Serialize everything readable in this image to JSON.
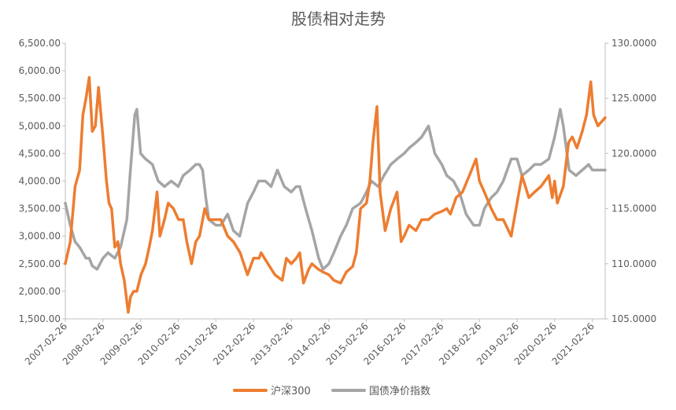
{
  "chart_data": {
    "type": "line",
    "title": "股债相对走势",
    "x_ticks": [
      "2007-02-26",
      "2008-02-26",
      "2009-02-26",
      "2010-02-26",
      "2011-02-26",
      "2012-02-26",
      "2013-02-26",
      "2014-02-26",
      "2015-02-26",
      "2016-02-26",
      "2017-02-26",
      "2018-02-26",
      "2019-02-26",
      "2020-02-26",
      "2021-02-26"
    ],
    "x_range": [
      "2007-02-26",
      "2021-06-30"
    ],
    "y_left": {
      "range": [
        1500,
        6500
      ],
      "ticks": [
        "1,500.00",
        "2,000.00",
        "2,500.00",
        "3,000.00",
        "3,500.00",
        "4,000.00",
        "4,500.00",
        "5,000.00",
        "5,500.00",
        "6,000.00",
        "6,500.00"
      ]
    },
    "y_right": {
      "range": [
        105,
        130
      ],
      "ticks": [
        "105.0000",
        "110.0000",
        "115.0000",
        "120.0000",
        "125.0000",
        "130.0000"
      ]
    },
    "grid": false,
    "legend_position": "bottom",
    "series": [
      {
        "name": "沪深300",
        "axis": "left",
        "color": "#ED7D31",
        "points": [
          [
            "2007-02-26",
            2500
          ],
          [
            "2007-04-15",
            2900
          ],
          [
            "2007-06-01",
            3900
          ],
          [
            "2007-07-15",
            4200
          ],
          [
            "2007-08-15",
            5200
          ],
          [
            "2007-09-15",
            5500
          ],
          [
            "2007-10-16",
            5880
          ],
          [
            "2007-11-15",
            4900
          ],
          [
            "2007-12-15",
            5000
          ],
          [
            "2008-01-14",
            5700
          ],
          [
            "2008-02-26",
            4800
          ],
          [
            "2008-03-31",
            4000
          ],
          [
            "2008-04-25",
            3600
          ],
          [
            "2008-05-20",
            3500
          ],
          [
            "2008-06-20",
            2800
          ],
          [
            "2008-07-20",
            2900
          ],
          [
            "2008-08-15",
            2500
          ],
          [
            "2008-09-20",
            2200
          ],
          [
            "2008-10-28",
            1620
          ],
          [
            "2008-11-20",
            1900
          ],
          [
            "2008-12-20",
            2000
          ],
          [
            "2009-01-20",
            2000
          ],
          [
            "2009-03-01",
            2300
          ],
          [
            "2009-04-15",
            2500
          ],
          [
            "2009-05-20",
            2800
          ],
          [
            "2009-06-20",
            3100
          ],
          [
            "2009-08-04",
            3800
          ],
          [
            "2009-09-01",
            3000
          ],
          [
            "2009-10-15",
            3300
          ],
          [
            "2009-11-20",
            3600
          ],
          [
            "2010-01-10",
            3500
          ],
          [
            "2010-03-01",
            3300
          ],
          [
            "2010-04-15",
            3300
          ],
          [
            "2010-05-20",
            2900
          ],
          [
            "2010-07-05",
            2500
          ],
          [
            "2010-08-15",
            2900
          ],
          [
            "2010-09-20",
            3000
          ],
          [
            "2010-11-10",
            3500
          ],
          [
            "2010-12-20",
            3300
          ],
          [
            "2011-02-26",
            3300
          ],
          [
            "2011-04-15",
            3300
          ],
          [
            "2011-06-20",
            3000
          ],
          [
            "2011-08-15",
            2900
          ],
          [
            "2011-10-20",
            2700
          ],
          [
            "2011-12-30",
            2300
          ],
          [
            "2012-02-26",
            2600
          ],
          [
            "2012-04-20",
            2600
          ],
          [
            "2012-05-10",
            2700
          ],
          [
            "2012-07-15",
            2500
          ],
          [
            "2012-09-20",
            2300
          ],
          [
            "2012-11-30",
            2200
          ],
          [
            "2013-01-10",
            2600
          ],
          [
            "2013-02-26",
            2500
          ],
          [
            "2013-04-15",
            2600
          ],
          [
            "2013-05-20",
            2700
          ],
          [
            "2013-06-25",
            2150
          ],
          [
            "2013-08-15",
            2400
          ],
          [
            "2013-09-15",
            2500
          ],
          [
            "2013-11-15",
            2400
          ],
          [
            "2013-12-30",
            2350
          ],
          [
            "2014-02-26",
            2300
          ],
          [
            "2014-04-15",
            2200
          ],
          [
            "2014-06-20",
            2150
          ],
          [
            "2014-08-15",
            2350
          ],
          [
            "2014-10-15",
            2450
          ],
          [
            "2014-11-20",
            2700
          ],
          [
            "2014-12-31",
            3500
          ],
          [
            "2015-02-26",
            3600
          ],
          [
            "2015-03-31",
            4000
          ],
          [
            "2015-04-30",
            4700
          ],
          [
            "2015-06-08",
            5350
          ],
          [
            "2015-07-08",
            3800
          ],
          [
            "2015-08-26",
            3100
          ],
          [
            "2015-10-20",
            3500
          ],
          [
            "2015-12-20",
            3800
          ],
          [
            "2016-01-28",
            2900
          ],
          [
            "2016-02-26",
            3000
          ],
          [
            "2016-04-15",
            3200
          ],
          [
            "2016-06-20",
            3100
          ],
          [
            "2016-08-15",
            3300
          ],
          [
            "2016-10-20",
            3300
          ],
          [
            "2016-12-20",
            3400
          ],
          [
            "2017-02-26",
            3450
          ],
          [
            "2017-04-15",
            3500
          ],
          [
            "2017-05-20",
            3400
          ],
          [
            "2017-07-15",
            3700
          ],
          [
            "2017-09-15",
            3800
          ],
          [
            "2017-11-20",
            4100
          ],
          [
            "2018-01-24",
            4400
          ],
          [
            "2018-02-26",
            4000
          ],
          [
            "2018-04-15",
            3800
          ],
          [
            "2018-06-20",
            3500
          ],
          [
            "2018-08-15",
            3300
          ],
          [
            "2018-10-15",
            3300
          ],
          [
            "2018-12-31",
            3000
          ],
          [
            "2019-02-26",
            3600
          ],
          [
            "2019-04-15",
            4100
          ],
          [
            "2019-06-20",
            3700
          ],
          [
            "2019-08-15",
            3800
          ],
          [
            "2019-10-15",
            3900
          ],
          [
            "2019-12-31",
            4100
          ],
          [
            "2020-02-03",
            3700
          ],
          [
            "2020-02-26",
            4000
          ],
          [
            "2020-03-23",
            3600
          ],
          [
            "2020-05-20",
            3900
          ],
          [
            "2020-07-10",
            4700
          ],
          [
            "2020-08-15",
            4800
          ],
          [
            "2020-09-30",
            4600
          ],
          [
            "2020-11-20",
            4900
          ],
          [
            "2020-12-31",
            5200
          ],
          [
            "2021-02-10",
            5800
          ],
          [
            "2021-03-10",
            5200
          ],
          [
            "2021-04-20",
            5000
          ],
          [
            "2021-06-30",
            5150
          ]
        ]
      },
      {
        "name": "国债净价指数",
        "axis": "right",
        "color": "#A5A5A5",
        "points": [
          [
            "2007-02-26",
            115.5
          ],
          [
            "2007-04-15",
            113.5
          ],
          [
            "2007-06-01",
            112.0
          ],
          [
            "2007-07-15",
            111.5
          ],
          [
            "2007-09-15",
            110.5
          ],
          [
            "2007-10-16",
            110.5
          ],
          [
            "2007-11-15",
            109.8
          ],
          [
            "2007-12-31",
            109.5
          ],
          [
            "2008-02-26",
            110.5
          ],
          [
            "2008-04-15",
            111.0
          ],
          [
            "2008-06-20",
            110.5
          ],
          [
            "2008-08-15",
            111.5
          ],
          [
            "2008-10-15",
            114.0
          ],
          [
            "2008-11-15",
            118.0
          ],
          [
            "2008-12-31",
            123.5
          ],
          [
            "2009-01-20",
            124.0
          ],
          [
            "2009-02-26",
            120.0
          ],
          [
            "2009-04-15",
            119.5
          ],
          [
            "2009-06-20",
            119.0
          ],
          [
            "2009-08-15",
            117.5
          ],
          [
            "2009-10-15",
            117.0
          ],
          [
            "2009-12-20",
            117.5
          ],
          [
            "2010-02-26",
            117.0
          ],
          [
            "2010-04-15",
            118.0
          ],
          [
            "2010-06-20",
            118.5
          ],
          [
            "2010-08-15",
            119.0
          ],
          [
            "2010-09-20",
            119.0
          ],
          [
            "2010-10-20",
            118.5
          ],
          [
            "2010-11-20",
            116.0
          ],
          [
            "2010-12-20",
            114.0
          ],
          [
            "2011-02-26",
            113.5
          ],
          [
            "2011-04-15",
            113.5
          ],
          [
            "2011-06-20",
            114.5
          ],
          [
            "2011-08-15",
            113.0
          ],
          [
            "2011-10-15",
            112.5
          ],
          [
            "2011-12-31",
            115.5
          ],
          [
            "2012-02-26",
            116.5
          ],
          [
            "2012-04-15",
            117.5
          ],
          [
            "2012-06-20",
            117.5
          ],
          [
            "2012-08-15",
            117.0
          ],
          [
            "2012-10-15",
            118.5
          ],
          [
            "2012-12-20",
            117.0
          ],
          [
            "2013-02-26",
            116.5
          ],
          [
            "2013-04-15",
            117.0
          ],
          [
            "2013-05-20",
            117.0
          ],
          [
            "2013-07-15",
            115.0
          ],
          [
            "2013-09-15",
            113.0
          ],
          [
            "2013-11-20",
            110.5
          ],
          [
            "2013-12-31",
            109.5
          ],
          [
            "2014-02-26",
            110.0
          ],
          [
            "2014-04-15",
            111.0
          ],
          [
            "2014-06-20",
            112.5
          ],
          [
            "2014-08-15",
            113.5
          ],
          [
            "2014-10-15",
            115.0
          ],
          [
            "2014-12-31",
            115.5
          ],
          [
            "2015-02-26",
            116.5
          ],
          [
            "2015-04-15",
            117.5
          ],
          [
            "2015-06-20",
            117.0
          ],
          [
            "2015-08-15",
            118.0
          ],
          [
            "2015-10-20",
            119.0
          ],
          [
            "2015-12-20",
            119.5
          ],
          [
            "2016-02-26",
            120.0
          ],
          [
            "2016-04-15",
            120.5
          ],
          [
            "2016-06-20",
            121.0
          ],
          [
            "2016-08-15",
            121.5
          ],
          [
            "2016-10-20",
            122.5
          ],
          [
            "2016-12-20",
            120.0
          ],
          [
            "2017-02-26",
            119.0
          ],
          [
            "2017-04-15",
            118.0
          ],
          [
            "2017-06-20",
            117.5
          ],
          [
            "2017-08-15",
            116.5
          ],
          [
            "2017-10-20",
            114.5
          ],
          [
            "2017-12-31",
            113.5
          ],
          [
            "2018-02-26",
            113.5
          ],
          [
            "2018-04-15",
            115.0
          ],
          [
            "2018-06-20",
            116.0
          ],
          [
            "2018-08-15",
            116.5
          ],
          [
            "2018-10-15",
            117.5
          ],
          [
            "2018-12-31",
            119.5
          ],
          [
            "2019-02-26",
            119.5
          ],
          [
            "2019-04-15",
            118.0
          ],
          [
            "2019-06-20",
            118.5
          ],
          [
            "2019-08-15",
            119.0
          ],
          [
            "2019-10-15",
            119.0
          ],
          [
            "2019-12-31",
            119.5
          ],
          [
            "2020-02-26",
            121.5
          ],
          [
            "2020-04-20",
            124.0
          ],
          [
            "2020-05-20",
            122.5
          ],
          [
            "2020-07-15",
            118.5
          ],
          [
            "2020-09-20",
            118.0
          ],
          [
            "2020-11-20",
            118.5
          ],
          [
            "2021-01-20",
            119.0
          ],
          [
            "2021-02-26",
            118.5
          ],
          [
            "2021-04-20",
            118.5
          ],
          [
            "2021-06-30",
            118.5
          ]
        ]
      }
    ]
  }
}
